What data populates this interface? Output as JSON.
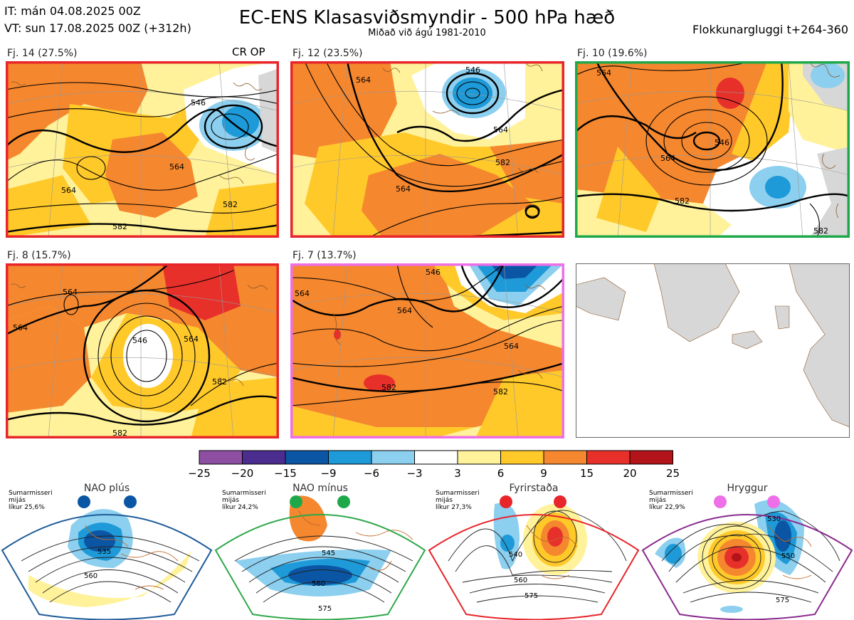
{
  "header": {
    "it_line": "IT: mán 04.08.2025 00Z",
    "vt_line": "VT: sun 17.08.2025 00Z  (+312h)",
    "title": "EC-ENS Klasasviðsmyndir - 500 hPa hæð",
    "subtitle": "Miðað við ágú 1981-2010",
    "window": "Flokkunargluggi t+264-360"
  },
  "clusters": [
    {
      "label": "Fj. 14 (27.5%)",
      "frame_color": "#e8252a",
      "contours": [
        "546",
        "564",
        "564",
        "582",
        "582"
      ],
      "extra": "CR OP"
    },
    {
      "label": "Fj. 12 (23.5%)",
      "frame_color": "#e8252a",
      "contours": [
        "546",
        "564",
        "564",
        "582",
        "564"
      ]
    },
    {
      "label": "Fj. 10 (19.6%)",
      "frame_color": "#1fa84a",
      "contours": [
        "546",
        "564",
        "564",
        "582",
        "582"
      ]
    },
    {
      "label": "Fj. 8 (15.7%)",
      "frame_color": "#e8252a",
      "contours": [
        "546",
        "564",
        "564",
        "564",
        "582",
        "582"
      ]
    },
    {
      "label": "Fj. 7 (13.7%)",
      "frame_color": "#ee6fe8",
      "contours": [
        "546",
        "564",
        "564",
        "564",
        "582",
        "582"
      ]
    }
  ],
  "colorbar": {
    "ticks": [
      "−25",
      "−20",
      "−15",
      "−9",
      "−6",
      "−3",
      "3",
      "6",
      "9",
      "15",
      "20",
      "25"
    ],
    "colors": [
      "#8e4fa3",
      "#4a2d8f",
      "#0b56a4",
      "#1e9ad8",
      "#8ccfef",
      "#ffffff",
      "#fff29a",
      "#ffc92a",
      "#f5872e",
      "#e8302b",
      "#b31419"
    ]
  },
  "regimes": [
    {
      "name": "NAO plús",
      "season": "Sumarmisseri",
      "avg": "mijás",
      "prob": "líkur 25,6%",
      "frame_color": "#1f5c99",
      "dot_color": "#0b56a4",
      "contours": [
        "535",
        "560"
      ]
    },
    {
      "name": "NAO mínus",
      "season": "Sumarmisseri",
      "avg": "mijás",
      "prob": "líkur 24,2%",
      "frame_color": "#2fa84a",
      "dot_color": "#1fa84a",
      "contours": [
        "545",
        "560",
        "575"
      ]
    },
    {
      "name": "Fyrirstaða",
      "season": "Sumarmisseri",
      "avg": "mijás",
      "prob": "líkur 27,3%",
      "frame_color": "#e8252a",
      "dot_color": "#e8252a",
      "contours": [
        "540",
        "560",
        "575"
      ]
    },
    {
      "name": "Hryggur",
      "season": "Sumarmisseri",
      "avg": "mijás",
      "prob": "líkur 22,9%",
      "frame_color": "#8a2a8e",
      "dot_color": "#ee6fe8",
      "contours": [
        "530",
        "550",
        "575"
      ]
    }
  ]
}
